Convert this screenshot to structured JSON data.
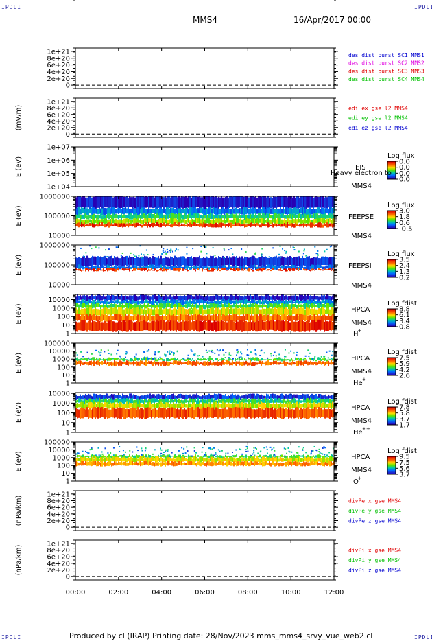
{
  "corners": {
    "tl": "IPDLI",
    "tr": "IPDLI",
    "bl": "IPDLI",
    "br": "IPDLI"
  },
  "header": {
    "spacecraft": "MMS4",
    "date": "16/Apr/2017 00:00"
  },
  "footer": {
    "text": "Produced by cl (IRAP)   Printing date: 28/Nov/2023   mms_mms4_srvy_vue_web2.cl"
  },
  "colors": {
    "red": "#e00000",
    "green": "#00c000",
    "magenta": "#e000e0",
    "blue": "#0000d0"
  },
  "chart_data": {
    "type": "multi-panel time series / spectrogram",
    "x_ticks": [
      "00:00",
      "02:00",
      "04:00",
      "06:00",
      "08:00",
      "10:00",
      "12:00"
    ],
    "xlim_hours": [
      0,
      12
    ],
    "panels": [
      {
        "id": "p1",
        "type": "line",
        "ylabel": "",
        "yticks": [
          "1e+21",
          "8e+20",
          "6e+20",
          "4e+20",
          "2e+20",
          "0"
        ],
        "ylim": [
          -1e+20,
          1.1e+21
        ],
        "zero_line": true,
        "legend": [
          {
            "text": "des dist burst SC1 MMS1",
            "color": "#0000d0"
          },
          {
            "text": "des dist burst SC2 MMS2",
            "color": "#e000e0"
          },
          {
            "text": "des dist burst SC3 MMS3",
            "color": "#e00000"
          },
          {
            "text": "des dist burst SC4 MMS4",
            "color": "#00c000"
          }
        ]
      },
      {
        "id": "p2",
        "type": "line",
        "ylabel": "(mV/m)",
        "yticks": [
          "1e+21",
          "8e+20",
          "6e+20",
          "4e+20",
          "2e+20",
          "0"
        ],
        "ylim": [
          -1e+20,
          1.1e+21
        ],
        "zero_line": true,
        "legend": [
          {
            "text": "edi ex gse l2 MMS4",
            "color": "#e00000"
          },
          {
            "text": "edi ey gse l2 MMS4",
            "color": "#00c000"
          },
          {
            "text": "edi ez gse l2 MMS4",
            "color": "#0000d0"
          }
        ]
      },
      {
        "id": "p3",
        "type": "spectrogram",
        "ylabel": "E (eV)",
        "yticks": [
          "1e+07",
          "1e+06",
          "1e+05",
          "1e+04"
        ],
        "scale": "log",
        "ylim": [
          10000.0,
          10000000.0
        ],
        "labels": [
          "EIS",
          "MMS4"
        ],
        "overlay": "Heavy electron to",
        "colorbar": {
          "title": "Log flux",
          "ticks": [
            "0.0",
            "0.0",
            "0.0",
            "0.0"
          ]
        },
        "bands": []
      },
      {
        "id": "p4",
        "type": "spectrogram",
        "ylabel": "E (eV)",
        "yticks": [
          "1000000",
          "100000",
          "10000"
        ],
        "scale": "log",
        "ylim": [
          10000.0,
          1000000.0
        ],
        "labels": [
          "FEEPSE",
          "MMS4"
        ],
        "colorbar": {
          "title": "Log flux",
          "ticks": [
            "3.0",
            "1.8",
            "0.6",
            "-0.5"
          ]
        },
        "bands": [
          {
            "lo": 250000,
            "hi": 1000000,
            "level": 0.05
          },
          {
            "lo": 120000,
            "hi": 250000,
            "level": 0.22
          },
          {
            "lo": 70000,
            "hi": 120000,
            "level": 0.4
          },
          {
            "lo": 40000,
            "hi": 70000,
            "level": 0.55
          },
          {
            "lo": 28000,
            "hi": 40000,
            "level": 0.9
          }
        ]
      },
      {
        "id": "p5",
        "type": "spectrogram",
        "ylabel": "E (eV)",
        "yticks": [
          "1000000",
          "100000",
          "10000"
        ],
        "scale": "log",
        "ylim": [
          10000.0,
          1000000.0
        ],
        "labels": [
          "FEEPSI",
          "MMS4"
        ],
        "colorbar": {
          "title": "Log flux",
          "ticks": [
            "3.5",
            "2.4",
            "1.3",
            "0.2"
          ]
        },
        "bands": [
          {
            "lo": 90000,
            "hi": 250000,
            "level": 0.08
          },
          {
            "lo": 62000,
            "hi": 90000,
            "level": 0.2
          },
          {
            "lo": 52000,
            "hi": 62000,
            "level": 0.9
          }
        ]
      },
      {
        "id": "p6",
        "type": "spectrogram",
        "ylabel": "E (eV)",
        "yticks": [
          "10000",
          "1000",
          "100",
          "10",
          "1"
        ],
        "scale": "log",
        "ylim": [
          1,
          40000
        ],
        "labels": [
          "HPCA",
          "MMS4",
          "H",
          "+"
        ],
        "colorbar": {
          "title": "Log fdist",
          "ticks": [
            "8.8",
            "6.1",
            "3.4",
            "0.8"
          ]
        },
        "bands": [
          {
            "lo": 8000,
            "hi": 30000,
            "level": 0.06
          },
          {
            "lo": 3000,
            "hi": 8000,
            "level": 0.25
          },
          {
            "lo": 1000,
            "hi": 3000,
            "level": 0.45
          },
          {
            "lo": 150,
            "hi": 1000,
            "level": 0.62
          },
          {
            "lo": 30,
            "hi": 150,
            "level": 0.8
          },
          {
            "lo": 2,
            "hi": 30,
            "level": 0.92
          }
        ]
      },
      {
        "id": "p7",
        "type": "spectrogram",
        "ylabel": "E (eV)",
        "yticks": [
          "100000",
          "10000",
          "1000",
          "100",
          "10",
          "1"
        ],
        "scale": "log",
        "ylim": [
          1,
          100000
        ],
        "labels": [
          "HPCA",
          "MMS4",
          "He",
          "+"
        ],
        "colorbar": {
          "title": "Log fdist",
          "ticks": [
            "7.5",
            "5.9",
            "4.2",
            "2.6"
          ]
        },
        "bands": [
          {
            "lo": 700,
            "hi": 1200,
            "level": 0.45
          },
          {
            "lo": 180,
            "hi": 500,
            "level": 0.82
          }
        ]
      },
      {
        "id": "p8",
        "type": "spectrogram",
        "ylabel": "E (eV)",
        "yticks": [
          "10000",
          "1000",
          "100",
          "10",
          "1"
        ],
        "scale": "log",
        "ylim": [
          1,
          12000
        ],
        "labels": [
          "HPCA",
          "MMS4",
          "He",
          "++"
        ],
        "colorbar": {
          "title": "Log fdist",
          "ticks": [
            "7.8",
            "5.8",
            "3.7",
            "1.7"
          ]
        },
        "bands": [
          {
            "lo": 2500,
            "hi": 7000,
            "level": 0.1
          },
          {
            "lo": 1000,
            "hi": 2500,
            "level": 0.4
          },
          {
            "lo": 300,
            "hi": 1000,
            "level": 0.6
          },
          {
            "lo": 30,
            "hi": 300,
            "level": 0.85
          }
        ]
      },
      {
        "id": "p9",
        "type": "spectrogram",
        "ylabel": "E (eV)",
        "yticks": [
          "100000",
          "10000",
          "1000",
          "100",
          "10",
          "1"
        ],
        "scale": "log",
        "ylim": [
          1,
          100000
        ],
        "labels": [
          "HPCA",
          "MMS4",
          "O",
          "+"
        ],
        "colorbar": {
          "title": "Log fdist",
          "ticks": [
            "9.5",
            "7.5",
            "5.6",
            "3.7"
          ]
        },
        "bands": [
          {
            "lo": 1000,
            "hi": 1800,
            "level": 0.45
          },
          {
            "lo": 300,
            "hi": 1000,
            "level": 0.62
          },
          {
            "lo": 100,
            "hi": 300,
            "level": 0.75
          }
        ]
      },
      {
        "id": "p10",
        "type": "line",
        "ylabel": "(nPa/km)",
        "yticks": [
          "1e+21",
          "8e+20",
          "6e+20",
          "4e+20",
          "2e+20",
          "0"
        ],
        "ylim": [
          -1e+20,
          1.1e+21
        ],
        "zero_line": true,
        "legend": [
          {
            "text": "divPe x gse MMS4",
            "color": "#e00000"
          },
          {
            "text": "divPe y gse MMS4",
            "color": "#00c000"
          },
          {
            "text": "divPe z gse MMS4",
            "color": "#0000d0"
          }
        ]
      },
      {
        "id": "p11",
        "type": "line",
        "ylabel": "(nPa/km)",
        "yticks": [
          "1e+21",
          "8e+20",
          "6e+20",
          "4e+20",
          "2e+20",
          "0"
        ],
        "ylim": [
          -1e+20,
          1.1e+21
        ],
        "zero_line": true,
        "legend": [
          {
            "text": "divPi x gse MMS4",
            "color": "#e00000"
          },
          {
            "text": "divPi y gse MMS4",
            "color": "#00c000"
          },
          {
            "text": "divPi z gse MMS4",
            "color": "#0000d0"
          }
        ]
      }
    ]
  }
}
